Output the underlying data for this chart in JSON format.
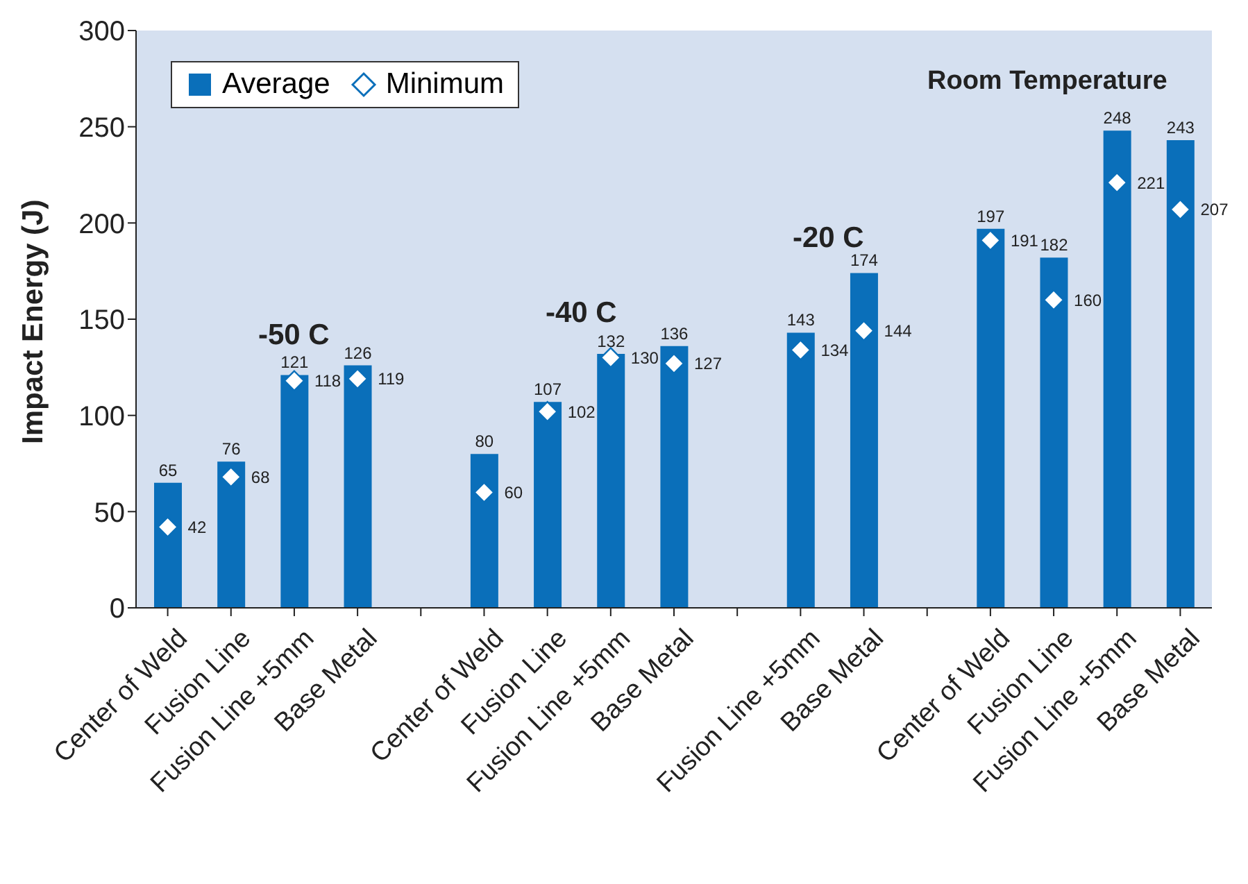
{
  "chart_data": {
    "type": "bar",
    "ylabel": "Impact Energy (J)",
    "categories": [
      "Center of Weld",
      "Fusion Line",
      "Fusion Line +5mm",
      "Base Metal",
      null,
      "Center of Weld",
      "Fusion Line",
      "Fusion Line +5mm",
      "Base Metal",
      null,
      "Fusion Line +5mm",
      "Base Metal",
      null,
      "Center of Weld",
      "Fusion Line",
      "Fusion Line +5mm",
      "Base Metal"
    ],
    "series": [
      {
        "name": "Average",
        "color": "#0a6fba",
        "values": [
          65,
          76,
          121,
          126,
          null,
          80,
          107,
          132,
          136,
          null,
          143,
          174,
          null,
          197,
          182,
          248,
          243
        ]
      },
      {
        "name": "Minimum",
        "type": "scatter",
        "color": "#ffffff",
        "values": [
          42,
          68,
          118,
          119,
          null,
          60,
          102,
          130,
          127,
          null,
          134,
          144,
          null,
          191,
          160,
          221,
          207
        ]
      }
    ],
    "ylim": [
      0,
      300
    ],
    "yticks": [
      0,
      50,
      100,
      150,
      200,
      250,
      300
    ],
    "marker": "diamond",
    "data_labels": true,
    "legend": "top left",
    "annotations": [
      "-50 C",
      "-40 C",
      "-20 C",
      "Room Temperature"
    ]
  }
}
